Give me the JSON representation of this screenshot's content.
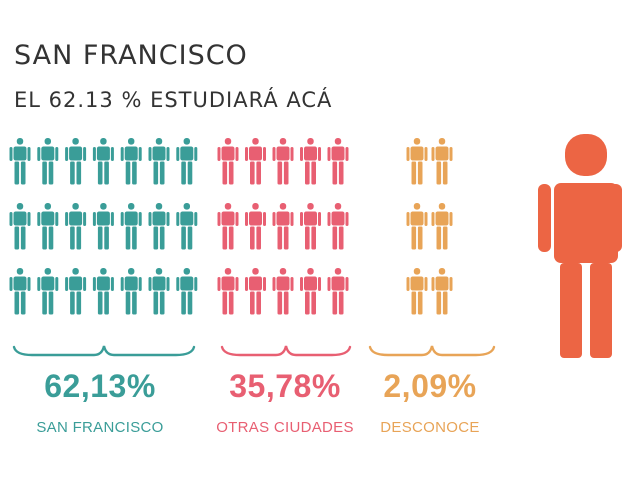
{
  "title": "SAN FRANCISCO",
  "subtitle": "EL 62.13 % ESTUDIARÁ ACÁ",
  "colors": {
    "san_francisco": "#3a9d98",
    "otras_ciudades": "#e85f72",
    "desconoce": "#e8a457",
    "person": "#ec6544",
    "text_dark": "#333333"
  },
  "chart_data": {
    "type": "pictograph",
    "categories": [
      "SAN FRANCISCO",
      "OTRAS CIUDADES",
      "DESCONOCE"
    ],
    "values": [
      62.13,
      35.78,
      2.09
    ],
    "value_labels": [
      "62,13%",
      "35,78%",
      "2,09%"
    ],
    "icon_grid": [
      {
        "rows": 3,
        "cols": 7
      },
      {
        "rows": 3,
        "cols": 5
      },
      {
        "rows": 3,
        "cols": 2
      }
    ]
  }
}
